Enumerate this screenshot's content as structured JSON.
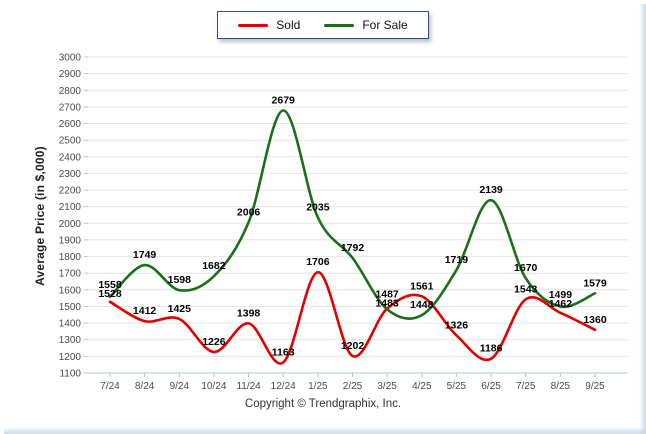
{
  "legend": {
    "items": [
      {
        "label": "Sold",
        "color": "#e00000"
      },
      {
        "label": "For Sale",
        "color": "#1b6e1b"
      }
    ]
  },
  "footer": {
    "text": "Copyright © Trendgraphix, Inc."
  },
  "chart_data": {
    "type": "line",
    "title": "",
    "xlabel": "",
    "ylabel": "Average Price (in $,000)",
    "ylim": [
      1100,
      3000
    ],
    "ytick_step": 100,
    "grid": true,
    "legend_position": "top-center",
    "categories": [
      "7/24",
      "8/24",
      "9/24",
      "10/24",
      "11/24",
      "12/24",
      "1/25",
      "2/25",
      "3/25",
      "4/25",
      "5/25",
      "6/25",
      "7/25",
      "8/25",
      "9/25"
    ],
    "series": [
      {
        "name": "Sold",
        "color": "#e00000",
        "values": [
          1528,
          1412,
          1425,
          1226,
          1398,
          1163,
          1706,
          1202,
          1487,
          1561,
          1326,
          1186,
          1543,
          1462,
          1360
        ]
      },
      {
        "name": "For Sale",
        "color": "#1b6e1b",
        "values": [
          1558,
          1749,
          1598,
          1682,
          2006,
          2679,
          2035,
          1792,
          1483,
          1448,
          1719,
          2139,
          1670,
          1499,
          1579
        ]
      }
    ],
    "colors": {
      "gridline": "#e4e4e4",
      "axis": "#b9c7db",
      "tick": "#c2c2c2"
    }
  }
}
